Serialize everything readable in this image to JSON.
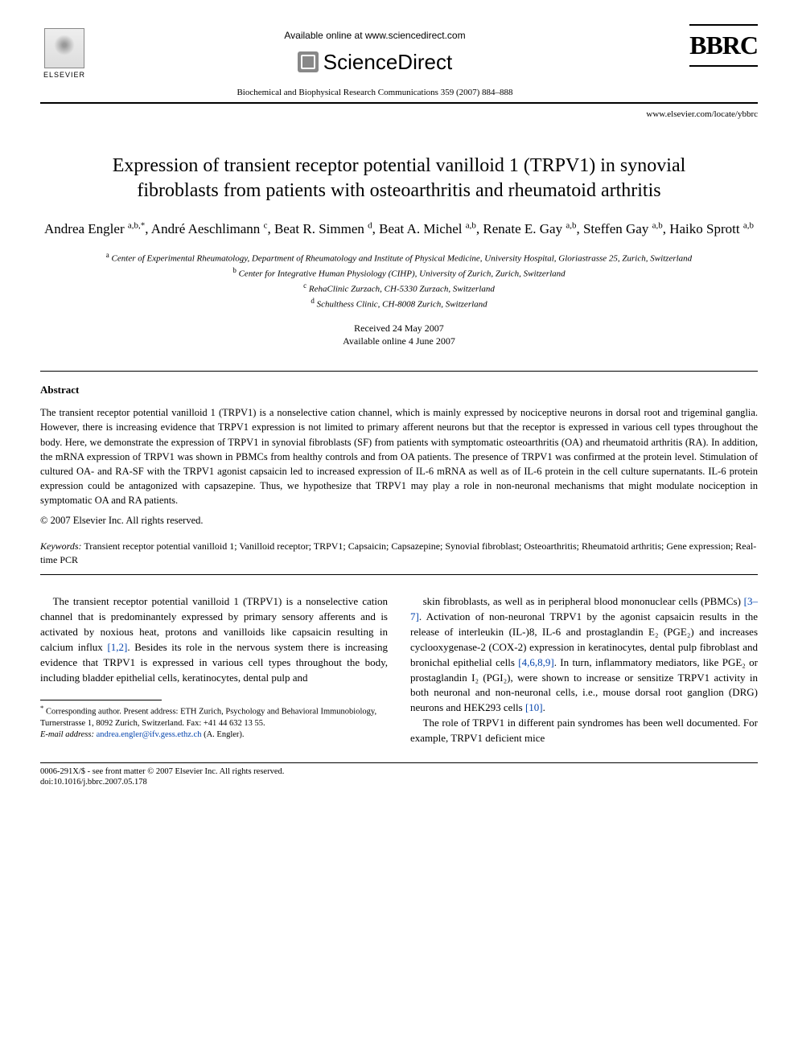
{
  "header": {
    "elsevier_label": "ELSEVIER",
    "available_online": "Available online at www.sciencedirect.com",
    "sciencedirect": "ScienceDirect",
    "bbrc": "BBRC",
    "citation": "Biochemical and Biophysical Research Communications 359 (2007) 884–888",
    "journal_url": "www.elsevier.com/locate/ybbrc"
  },
  "title": "Expression of transient receptor potential vanilloid 1 (TRPV1) in synovial fibroblasts from patients with osteoarthritis and rheumatoid arthritis",
  "authors_html": "Andrea Engler <sup>a,b,*</sup>, André Aeschlimann <sup>c</sup>, Beat R. Simmen <sup>d</sup>, Beat A. Michel <sup>a,b</sup>, Renate E. Gay <sup>a,b</sup>, Steffen Gay <sup>a,b</sup>, Haiko Sprott <sup>a,b</sup>",
  "affiliations": {
    "a": "Center of Experimental Rheumatology, Department of Rheumatology and Institute of Physical Medicine, University Hospital, Gloriastrasse 25, Zurich, Switzerland",
    "b": "Center for Integrative Human Physiology (CIHP), University of Zurich, Zurich, Switzerland",
    "c": "RehaClinic Zurzach, CH-5330 Zurzach, Switzerland",
    "d": "Schulthess Clinic, CH-8008 Zurich, Switzerland"
  },
  "dates": {
    "received": "Received 24 May 2007",
    "online": "Available online 4 June 2007"
  },
  "abstract": {
    "heading": "Abstract",
    "text": "The transient receptor potential vanilloid 1 (TRPV1) is a nonselective cation channel, which is mainly expressed by nociceptive neurons in dorsal root and trigeminal ganglia. However, there is increasing evidence that TRPV1 expression is not limited to primary afferent neurons but that the receptor is expressed in various cell types throughout the body. Here, we demonstrate the expression of TRPV1 in synovial fibroblasts (SF) from patients with symptomatic osteoarthritis (OA) and rheumatoid arthritis (RA). In addition, the mRNA expression of TRPV1 was shown in PBMCs from healthy controls and from OA patients. The presence of TRPV1 was confirmed at the protein level. Stimulation of cultured OA- and RA-SF with the TRPV1 agonist capsaicin led to increased expression of IL-6 mRNA as well as of IL-6 protein in the cell culture supernatants. IL-6 protein expression could be antagonized with capsazepine. Thus, we hypothesize that TRPV1 may play a role in non-neuronal mechanisms that might modulate nociception in symptomatic OA and RA patients.",
    "copyright": "© 2007 Elsevier Inc. All rights reserved."
  },
  "keywords": {
    "label": "Keywords:",
    "text": " Transient receptor potential vanilloid 1; Vanilloid receptor; TRPV1; Capsaicin; Capsazepine; Synovial fibroblast; Osteoarthritis; Rheumatoid arthritis; Gene expression; Real-time PCR"
  },
  "body": {
    "p1_a": "The transient receptor potential vanilloid 1 (TRPV1) is a nonselective cation channel that is predominantely expressed by primary sensory afferents and is activated by noxious heat, protons and vanilloids like capsaicin resulting in calcium influx ",
    "ref1": "[1,2]",
    "p1_b": ". Besides its role in the nervous system there is increasing evidence that TRPV1 is expressed in various cell types throughout the body, including bladder epithelial cells, keratinocytes, dental pulp and",
    "p2_a": "skin fibroblasts, as well as in peripheral blood mononuclear cells (PBMCs) ",
    "ref2": "[3–7]",
    "p2_b": ". Activation of non-neuronal TRPV1 by the agonist capsaicin results in the release of interleukin (IL-)8, IL-6 and prostaglandin E₂ (PGE₂) and increases cyclooxygenase-2 (COX-2) expression in keratinocytes, dental pulp fibroblast and bronichal epithelial cells ",
    "ref3": "[4,6,8,9]",
    "p2_c": ". In turn, inflammatory mediators, like PGE₂ or prostaglandin I₂ (PGI₂), were shown to increase or sensitize TRPV1 activity in both neuronal and non-neuronal cells, i.e., mouse dorsal root ganglion (DRG) neurons and HEK293 cells ",
    "ref4": "[10]",
    "p2_d": ".",
    "p3": "The role of TRPV1 in different pain syndromes has been well documented. For example, TRPV1 deficient mice"
  },
  "footnotes": {
    "corresponding": "Corresponding author. Present address: ETH Zurich, Psychology and Behavioral Immunobiology, Turnerstrasse 1, 8092 Zurich, Switzerland. Fax: +41 44 632 13 55.",
    "email_label": "E-mail address:",
    "email": "andrea.engler@ifv.gess.ethz.ch",
    "email_suffix": " (A. Engler)."
  },
  "footer": {
    "line1": "0006-291X/$ - see front matter © 2007 Elsevier Inc. All rights reserved.",
    "line2": "doi:10.1016/j.bbrc.2007.05.178"
  }
}
